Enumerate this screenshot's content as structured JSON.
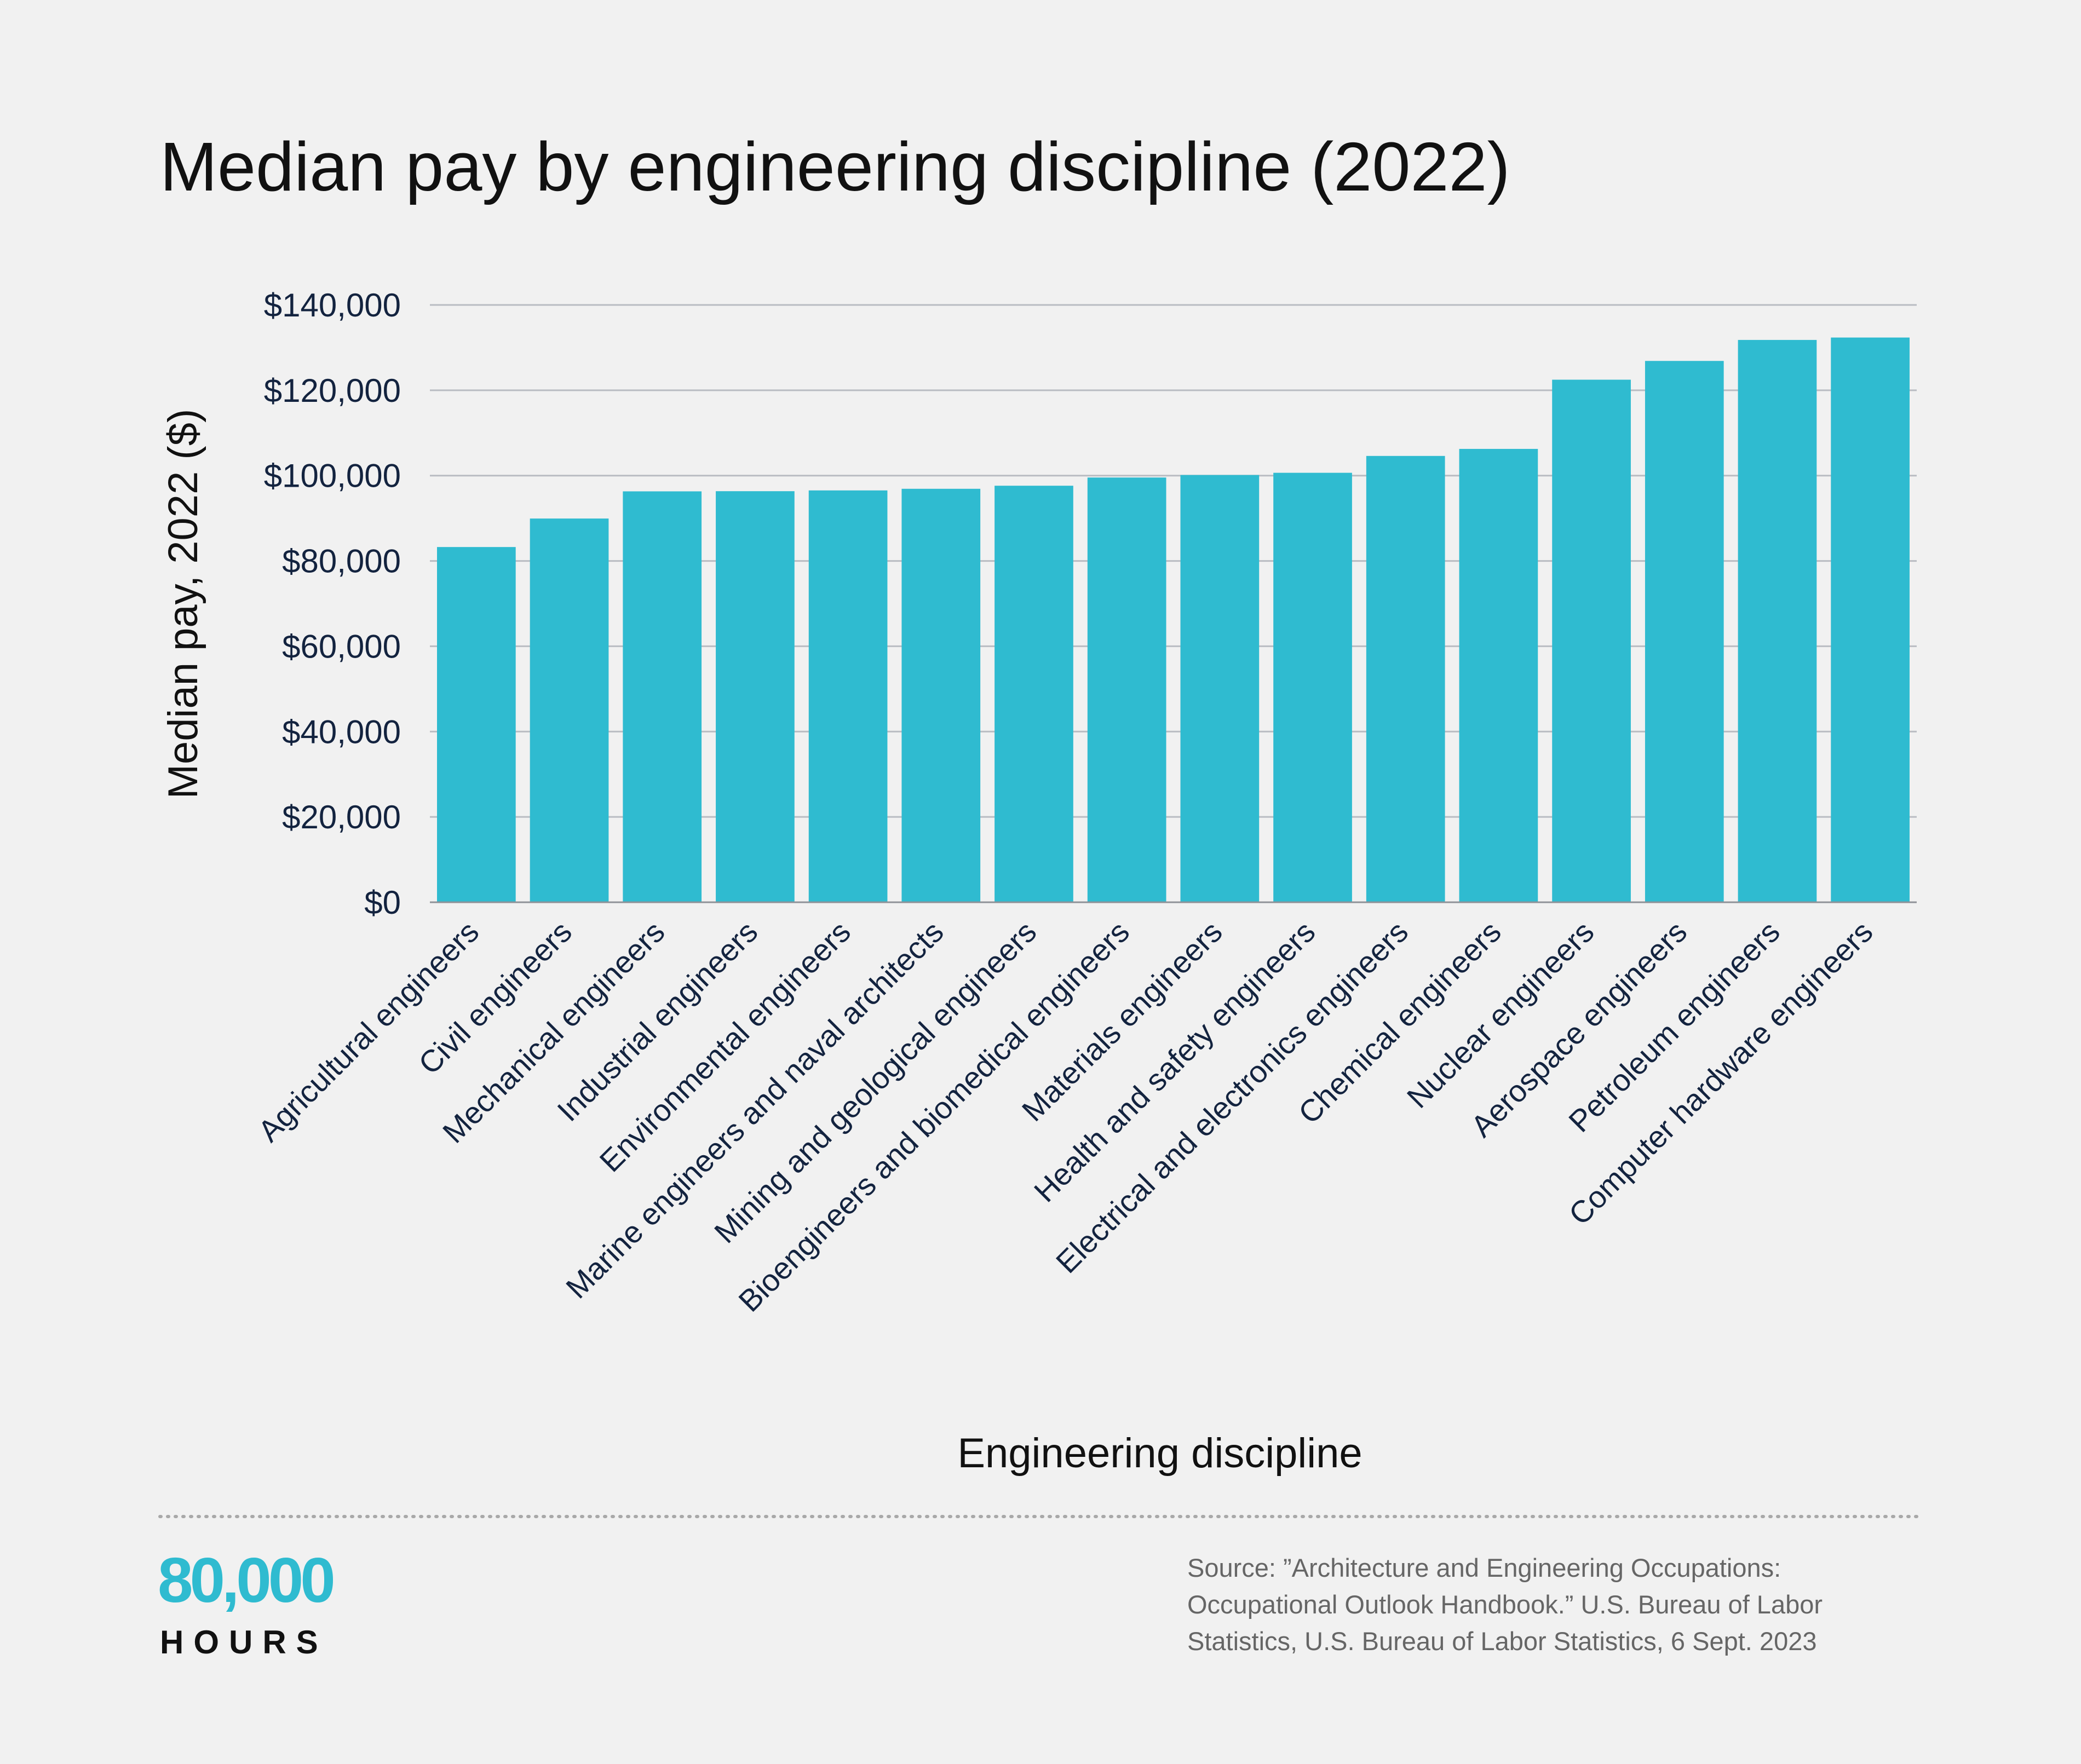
{
  "colors": {
    "background": "#f1f1f1",
    "bar": "#2fbbd0",
    "grid": "#b9bcc2",
    "text": "#13233f",
    "brand": "#2fbbd0"
  },
  "chart_data": {
    "type": "bar",
    "title": "Median pay by engineering discipline (2022)",
    "xlabel": "Engineering discipline",
    "ylabel": "Median pay, 2022 ($)",
    "ylim": [
      0,
      140000
    ],
    "yticks": [
      0,
      20000,
      40000,
      60000,
      80000,
      100000,
      120000,
      140000
    ],
    "ytick_labels": [
      "$0",
      "$20,000",
      "$40,000",
      "$60,000",
      "$80,000",
      "$100,000",
      "$120,000",
      "$140,000"
    ],
    "grid": true,
    "categories": [
      "Agricultural engineers",
      "Civil engineers",
      "Mechanical engineers",
      "Industrial engineers",
      "Environmental engineers",
      "Marine engineers and naval architects",
      "Mining and geological engineers",
      "Bioengineers and biomedical engineers",
      "Materials engineers",
      "Health and safety engineers",
      "Electrical and electronics engineers",
      "Chemical engineers",
      "Nuclear engineers",
      "Aerospace engineers",
      "Petroleum engineers",
      "Computer hardware engineers"
    ],
    "values": [
      83260,
      89940,
      96310,
      96350,
      96530,
      96910,
      97630,
      99550,
      100140,
      100660,
      104610,
      106260,
      122480,
      126880,
      131800,
      132360
    ]
  },
  "logo": {
    "number": "80,000",
    "word": "HOURS"
  },
  "source": {
    "lines": [
      "Source: ”Architecture and Engineering Occupations:",
      "Occupational Outlook Handbook.” U.S. Bureau of Labor",
      "Statistics, U.S. Bureau of Labor Statistics, 6 Sept. 2023"
    ]
  }
}
